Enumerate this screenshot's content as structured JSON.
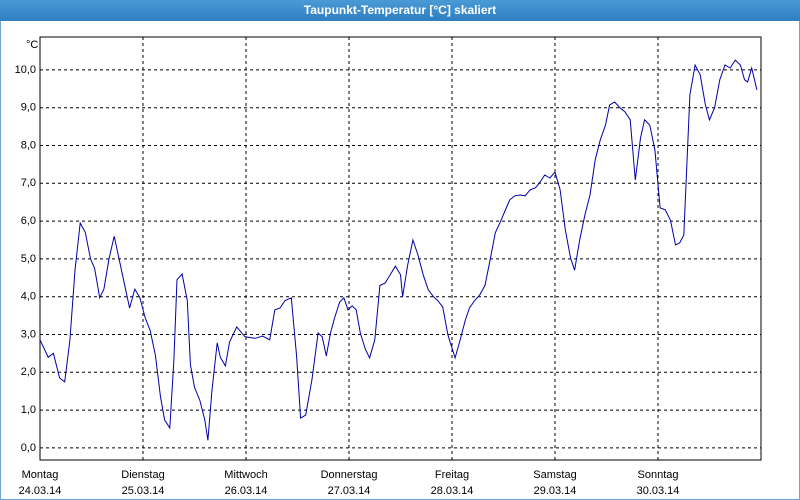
{
  "chart_data": {
    "type": "line",
    "title": "Taupunkt-Temperatur [°C] skaliert",
    "y_unit_label": "°C",
    "color": "#0000a8",
    "grid": true,
    "xlim": [
      0,
      7
    ],
    "ylim": [
      -0.32,
      10.87
    ],
    "xticks": [
      {
        "value": 0,
        "label": "Montag"
      },
      {
        "value": 1,
        "label": "Dienstag"
      },
      {
        "value": 2,
        "label": "Mittwoch"
      },
      {
        "value": 3,
        "label": "Donnerstag"
      },
      {
        "value": 4,
        "label": "Freitag"
      },
      {
        "value": 5,
        "label": "Samstag"
      },
      {
        "value": 6,
        "label": "Sonntag"
      }
    ],
    "xtick_dates": [
      "24.03.14",
      "25.03.14",
      "26.03.14",
      "27.03.14",
      "28.03.14",
      "29.03.14",
      "30.03.14"
    ],
    "yticks": [
      {
        "value": 0,
        "label": "0,0"
      },
      {
        "value": 1,
        "label": "1,0"
      },
      {
        "value": 2,
        "label": "2,0"
      },
      {
        "value": 3,
        "label": "3,0"
      },
      {
        "value": 4,
        "label": "4,0"
      },
      {
        "value": 5,
        "label": "5,0"
      },
      {
        "value": 6,
        "label": "6,0"
      },
      {
        "value": 7,
        "label": "7,0"
      },
      {
        "value": 8,
        "label": "8,0"
      },
      {
        "value": 9,
        "label": "9,0"
      },
      {
        "value": 10,
        "label": "10,0"
      }
    ],
    "x": [
      0,
      0.08,
      0.13,
      0.19,
      0.24,
      0.29,
      0.34,
      0.39,
      0.44,
      0.49,
      0.53,
      0.58,
      0.62,
      0.67,
      0.72,
      0.78,
      0.83,
      0.87,
      0.92,
      0.97,
      1.02,
      1.07,
      1.12,
      1.17,
      1.21,
      1.26,
      1.3,
      1.33,
      1.38,
      1.43,
      1.46,
      1.5,
      1.55,
      1.6,
      1.63,
      1.67,
      1.72,
      1.75,
      1.8,
      1.84,
      1.91,
      1.99,
      2.09,
      2.16,
      2.23,
      2.28,
      2.33,
      2.38,
      2.44,
      2.49,
      2.53,
      2.58,
      2.64,
      2.7,
      2.74,
      2.78,
      2.82,
      2.86,
      2.91,
      2.95,
      2.99,
      3.03,
      3.07,
      3.11,
      3.16,
      3.2,
      3.25,
      3.3,
      3.35,
      3.4,
      3.45,
      3.5,
      3.52,
      3.57,
      3.62,
      3.67,
      3.72,
      3.77,
      3.82,
      3.86,
      3.91,
      3.96,
      4.03,
      4.08,
      4.13,
      4.17,
      4.22,
      4.27,
      4.32,
      4.37,
      4.42,
      4.47,
      4.51,
      4.56,
      4.61,
      4.66,
      4.71,
      4.76,
      4.81,
      4.85,
      4.9,
      4.95,
      5.0,
      5.05,
      5.1,
      5.15,
      5.19,
      5.24,
      5.29,
      5.34,
      5.39,
      5.44,
      5.49,
      5.53,
      5.58,
      5.63,
      5.68,
      5.73,
      5.78,
      5.83,
      5.87,
      5.92,
      5.97,
      6.02,
      6.07,
      6.12,
      6.17,
      6.21,
      6.25,
      6.31,
      6.36,
      6.41,
      6.46,
      6.5,
      6.55,
      6.6,
      6.65,
      6.7,
      6.75,
      6.8,
      6.84,
      6.87,
      6.91,
      6.96
    ],
    "values": [
      2.86,
      2.4,
      2.5,
      1.85,
      1.75,
      2.85,
      4.7,
      5.95,
      5.7,
      5.0,
      4.75,
      3.97,
      4.2,
      5.0,
      5.6,
      4.85,
      4.2,
      3.7,
      4.2,
      3.97,
      3.45,
      3.1,
      2.45,
      1.35,
      0.74,
      0.53,
      2.33,
      4.45,
      4.6,
      3.9,
      2.2,
      1.6,
      1.27,
      0.74,
      0.2,
      1.53,
      2.78,
      2.4,
      2.17,
      2.8,
      3.2,
      2.94,
      2.9,
      2.96,
      2.86,
      3.65,
      3.7,
      3.9,
      3.97,
      2.46,
      0.79,
      0.87,
      1.8,
      3.04,
      2.94,
      2.43,
      3.04,
      3.44,
      3.86,
      3.97,
      3.65,
      3.76,
      3.65,
      3.04,
      2.6,
      2.38,
      2.86,
      4.3,
      4.36,
      4.58,
      4.81,
      4.58,
      4.0,
      4.84,
      5.5,
      5.1,
      4.58,
      4.18,
      4.0,
      3.9,
      3.73,
      2.99,
      2.38,
      2.86,
      3.39,
      3.7,
      3.9,
      4.05,
      4.3,
      4.97,
      5.69,
      5.98,
      6.24,
      6.56,
      6.67,
      6.69,
      6.67,
      6.83,
      6.88,
      7.01,
      7.22,
      7.14,
      7.3,
      6.83,
      5.77,
      5.03,
      4.7,
      5.5,
      6.16,
      6.69,
      7.62,
      8.15,
      8.54,
      9.07,
      9.15,
      9.0,
      8.89,
      8.68,
      7.09,
      8.2,
      8.68,
      8.54,
      7.88,
      6.35,
      6.3,
      6.03,
      5.37,
      5.42,
      5.63,
      9.34,
      10.13,
      9.87,
      9.07,
      8.68,
      9.0,
      9.74,
      10.13,
      10.05,
      10.26,
      10.13,
      9.74,
      9.68,
      10.05,
      9.47
    ]
  }
}
